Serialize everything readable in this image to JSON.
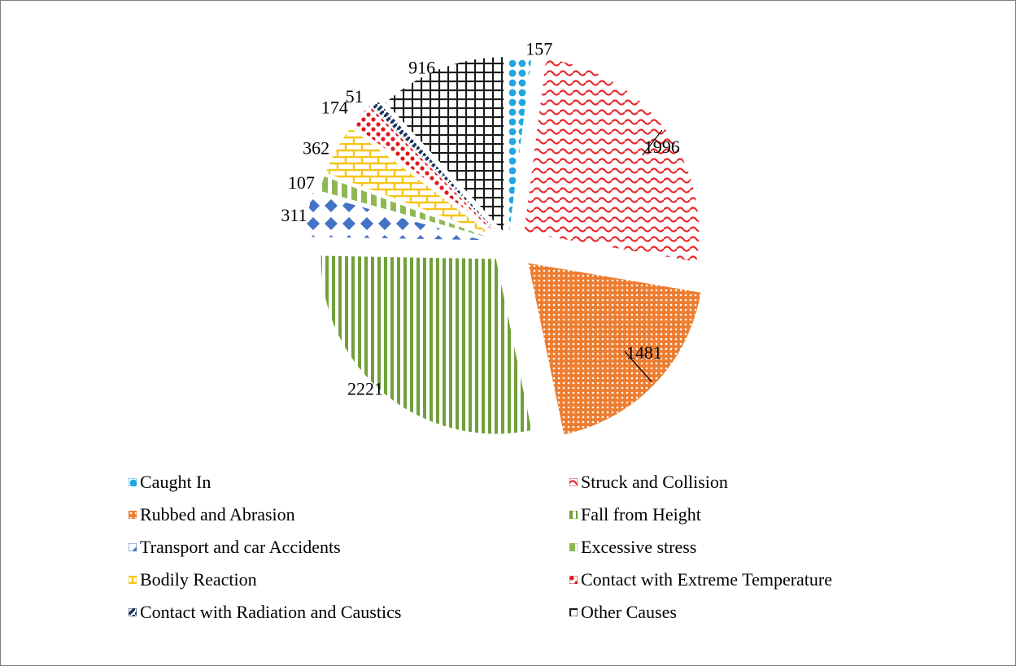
{
  "chart_data": {
    "type": "pie",
    "exploded": true,
    "categories": [
      "Caught In",
      "Struck and Collision",
      "Rubbed and Abrasion",
      "Fall from Height",
      "Transport and car Accidents",
      "Excessive stress",
      "Bodily Reaction",
      "Contact with Extreme Temperature",
      "Contact with Radiation and Caustics",
      "Other Causes"
    ],
    "values": [
      157,
      1996,
      1481,
      2221,
      311,
      107,
      362,
      174,
      51,
      916
    ],
    "value_labels": [
      "157",
      "1996",
      "1481",
      "2221",
      "311",
      "107",
      "362",
      "174",
      "51",
      "916"
    ],
    "colors": [
      "#1ea7e1",
      "#e8262a",
      "#ed7d31",
      "#70a03a",
      "#4472c4",
      "#8fb854",
      "#f5c518",
      "#e0191c",
      "#1f3864",
      "#1a1a1a"
    ],
    "patterns": [
      "dots",
      "wave",
      "dots-dense",
      "vertical-stripes",
      "diamonds",
      "dashes",
      "bricks",
      "confetti",
      "diagonal-dashes",
      "grid"
    ],
    "legend_position": "bottom"
  }
}
